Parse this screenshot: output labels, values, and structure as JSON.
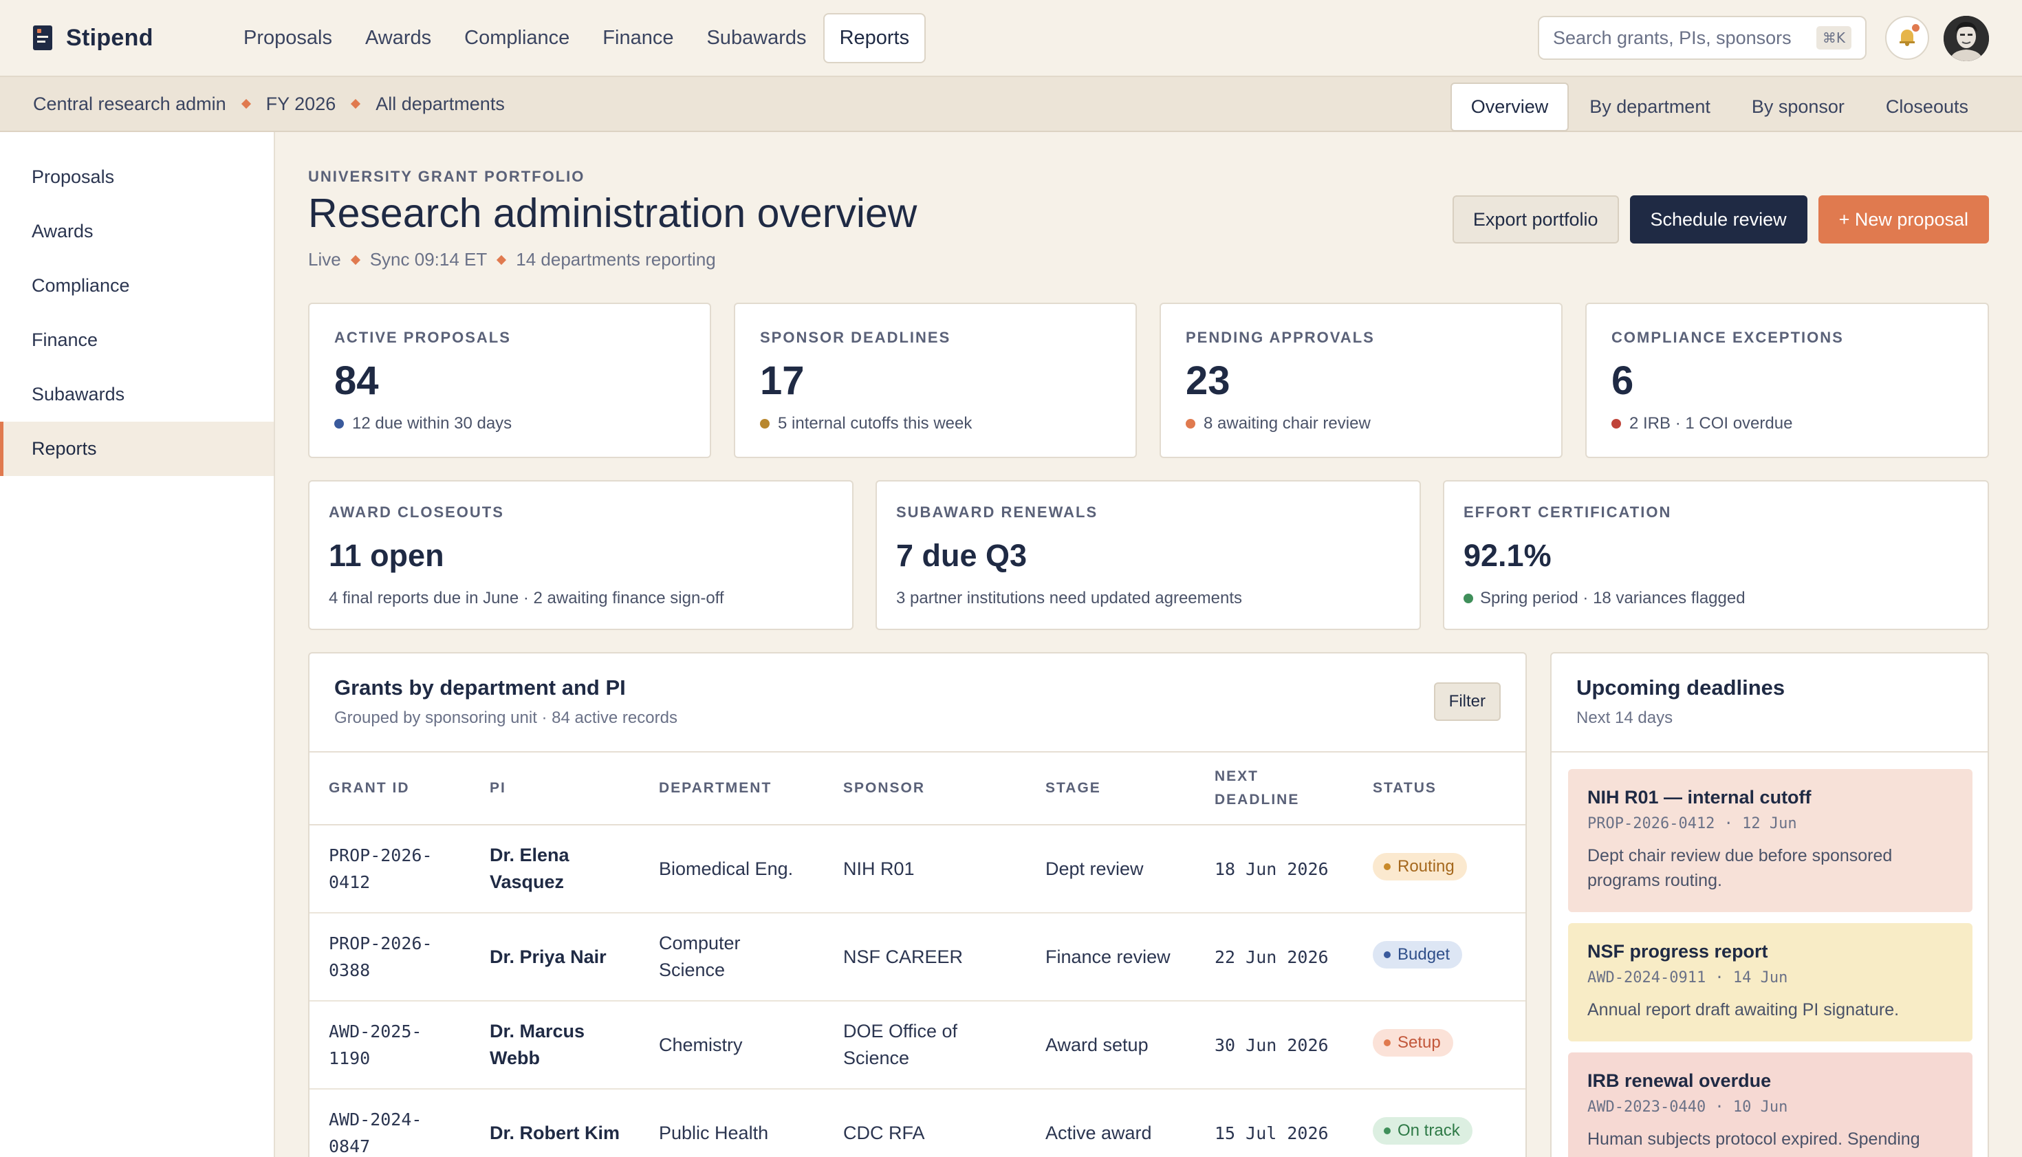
{
  "app": {
    "name": "Stipend"
  },
  "topnav": [
    {
      "label": "Proposals",
      "active": false
    },
    {
      "label": "Awards",
      "active": false
    },
    {
      "label": "Compliance",
      "active": false
    },
    {
      "label": "Finance",
      "active": false
    },
    {
      "label": "Subawards",
      "active": false
    },
    {
      "label": "Reports",
      "active": true
    }
  ],
  "search": {
    "placeholder": "Search grants, PIs, sponsors",
    "shortcut": "⌘K"
  },
  "breadcrumb": [
    "Central research admin",
    "FY 2026",
    "All departments"
  ],
  "subtabs": [
    {
      "label": "Overview",
      "active": true
    },
    {
      "label": "By department",
      "active": false
    },
    {
      "label": "By sponsor",
      "active": false
    },
    {
      "label": "Closeouts",
      "active": false
    }
  ],
  "sidebar": [
    {
      "label": "Proposals"
    },
    {
      "label": "Awards"
    },
    {
      "label": "Compliance"
    },
    {
      "label": "Finance"
    },
    {
      "label": "Subawards"
    },
    {
      "label": "Reports",
      "active": true
    }
  ],
  "page": {
    "eyebrow": "UNIVERSITY GRANT PORTFOLIO",
    "title": "Research administration overview",
    "meta": [
      "Live",
      "Sync 09:14 ET",
      "14 departments reporting"
    ],
    "actions": {
      "export": "Export portfolio",
      "schedule": "Schedule review",
      "new": "+ New proposal"
    }
  },
  "kpis": [
    {
      "label": "ACTIVE PROPOSALS",
      "value": "84",
      "sub": "12 due within 30 days",
      "color": "#3a5a9c"
    },
    {
      "label": "SPONSOR DEADLINES",
      "value": "17",
      "sub": "5 internal cutoffs this week",
      "color": "#b8872e"
    },
    {
      "label": "PENDING APPROVALS",
      "value": "23",
      "sub": "8 awaiting chair review",
      "color": "#e07a4f"
    },
    {
      "label": "COMPLIANCE EXCEPTIONS",
      "value": "6",
      "sub": "2 IRB · 1 COI overdue",
      "color": "#c0443a"
    }
  ],
  "kpis2": [
    {
      "label": "AWARD CLOSEOUTS",
      "value": "11 open",
      "sub": "4 final reports due in June · 2 awaiting finance sign-off"
    },
    {
      "label": "SUBAWARD RENEWALS",
      "value": "7 due Q3",
      "sub": "3 partner institutions need updated agreements"
    },
    {
      "label": "EFFORT CERTIFICATION",
      "value": "92.1%",
      "sub": "Spring period · 18 variances flagged",
      "color": "#3f8f5a"
    }
  ],
  "grants": {
    "title": "Grants by department and PI",
    "subtitle": "Grouped by sponsoring unit · 84 active records",
    "filter": "Filter",
    "columns": {
      "id": "GRANT ID",
      "pi": "PI",
      "dept": "DEPARTMENT",
      "sponsor": "SPONSOR",
      "stage": "STAGE",
      "deadline_1": "NEXT",
      "deadline_2": "DEADLINE",
      "status": "STATUS"
    },
    "rows": [
      {
        "id_1": "PROP-2026-",
        "id_2": "0412",
        "pi_1": "Dr. Elena",
        "pi_2": "Vasquez",
        "dept_1": "Biomedical Eng.",
        "dept_2": "",
        "sponsor_1": "NIH R01",
        "sponsor_2": "",
        "stage": "Dept review",
        "deadline": "18 Jun 2026",
        "status": "Routing",
        "status_bg": "#fbe9cf",
        "status_fg": "#a5681d",
        "status_dot": "#c98a2a"
      },
      {
        "id_1": "PROP-2026-",
        "id_2": "0388",
        "pi_1": "Dr. Priya Nair",
        "pi_2": "",
        "dept_1": "Computer",
        "dept_2": "Science",
        "sponsor_1": "NSF CAREER",
        "sponsor_2": "",
        "stage": "Finance review",
        "deadline": "22 Jun 2026",
        "status": "Budget",
        "status_bg": "#dde6f4",
        "status_fg": "#2f4f8a",
        "status_dot": "#3a5a9c"
      },
      {
        "id_1": "AWD-2025-",
        "id_2": "1190",
        "pi_1": "Dr. Marcus",
        "pi_2": "Webb",
        "dept_1": "Chemistry",
        "dept_2": "",
        "sponsor_1": "DOE Office of",
        "sponsor_2": "Science",
        "stage": "Award setup",
        "deadline": "30 Jun 2026",
        "status": "Setup",
        "status_bg": "#fbe2d8",
        "status_fg": "#c2573a",
        "status_dot": "#e07a4f"
      },
      {
        "id_1": "AWD-2024-",
        "id_2": "0847",
        "pi_1": "Dr. Robert Kim",
        "pi_2": "",
        "dept_1": "Public Health",
        "dept_2": "",
        "sponsor_1": "CDC RFA",
        "sponsor_2": "",
        "stage": "Active award",
        "deadline": "15 Jul 2026",
        "status": "On track",
        "status_bg": "#dcefe1",
        "status_fg": "#2f7a47",
        "status_dot": "#3f8f5a"
      }
    ]
  },
  "deadlines": {
    "title": "Upcoming deadlines",
    "subtitle": "Next 14 days",
    "items": [
      {
        "title": "NIH R01 — internal cutoff",
        "meta": "PROP-2026-0412 · 12 Jun",
        "desc_1": "Dept chair review due before sponsored",
        "desc_2": "programs routing.",
        "bg": "#f7e1d8"
      },
      {
        "title": "NSF progress report",
        "meta": "AWD-2024-0911 · 14 Jun",
        "desc_1": "Annual report draft awaiting PI signature.",
        "desc_2": "",
        "bg": "#f8ecc6"
      },
      {
        "title": "IRB renewal overdue",
        "meta": "AWD-2023-0440 · 10 Jun",
        "desc_1": "Human subjects protocol expired. Spending",
        "desc_2": "",
        "bg": "#f6d9d3"
      }
    ]
  }
}
